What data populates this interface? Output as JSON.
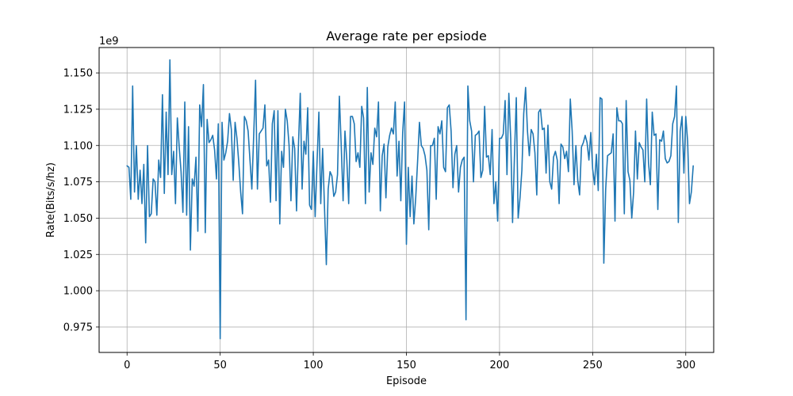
{
  "chart_data": {
    "type": "line",
    "title": "Average rate per epsiode",
    "xlabel": "Episode",
    "ylabel": "Rate(Bits/s/hz)",
    "y_offset_label": "1e9",
    "grid": true,
    "xlim": [
      -15,
      315
    ],
    "ylim": [
      0.9575,
      1.1675
    ],
    "x_ticks": [
      0,
      50,
      100,
      150,
      200,
      250,
      300
    ],
    "x_tick_labels": [
      "0",
      "50",
      "100",
      "150",
      "200",
      "250",
      "300"
    ],
    "y_ticks": [
      0.975,
      1.0,
      1.025,
      1.05,
      1.075,
      1.1,
      1.125,
      1.15
    ],
    "y_tick_labels": [
      "0.975",
      "1.000",
      "1.025",
      "1.050",
      "1.075",
      "1.100",
      "1.125",
      "1.150"
    ],
    "series_color": "#1f77b4",
    "series": [
      {
        "values": [
          1.086,
          1.085,
          1.063,
          1.141,
          1.068,
          1.1,
          1.063,
          1.083,
          1.06,
          1.087,
          1.033,
          1.1,
          1.051,
          1.053,
          1.077,
          1.075,
          1.052,
          1.09,
          1.078,
          1.135,
          1.067,
          1.123,
          1.08,
          1.159,
          1.08,
          1.096,
          1.06,
          1.119,
          1.099,
          1.082,
          1.054,
          1.13,
          1.052,
          1.113,
          1.028,
          1.077,
          1.072,
          1.092,
          1.041,
          1.128,
          1.113,
          1.142,
          1.04,
          1.118,
          1.102,
          1.104,
          1.107,
          1.097,
          1.077,
          1.115,
          0.967,
          1.116,
          1.09,
          1.095,
          1.103,
          1.122,
          1.111,
          1.076,
          1.116,
          1.105,
          1.088,
          1.068,
          1.053,
          1.12,
          1.117,
          1.11,
          1.09,
          1.07,
          1.107,
          1.145,
          1.07,
          1.108,
          1.11,
          1.112,
          1.128,
          1.086,
          1.09,
          1.061,
          1.115,
          1.124,
          1.062,
          1.124,
          1.046,
          1.096,
          1.085,
          1.125,
          1.117,
          1.1,
          1.062,
          1.106,
          1.098,
          1.055,
          1.099,
          1.136,
          1.07,
          1.103,
          1.094,
          1.126,
          1.059,
          1.056,
          1.096,
          1.051,
          1.088,
          1.123,
          1.06,
          1.098,
          1.058,
          1.018,
          1.07,
          1.082,
          1.079,
          1.065,
          1.068,
          1.08,
          1.134,
          1.1,
          1.062,
          1.11,
          1.09,
          1.06,
          1.12,
          1.12,
          1.115,
          1.089,
          1.095,
          1.085,
          1.127,
          1.119,
          1.06,
          1.14,
          1.068,
          1.095,
          1.087,
          1.112,
          1.106,
          1.13,
          1.055,
          1.093,
          1.101,
          1.064,
          1.099,
          1.107,
          1.112,
          1.108,
          1.13,
          1.079,
          1.103,
          1.062,
          1.109,
          1.13,
          1.032,
          1.085,
          1.051,
          1.079,
          1.046,
          1.064,
          1.089,
          1.116,
          1.1,
          1.098,
          1.093,
          1.083,
          1.042,
          1.1,
          1.1,
          1.105,
          1.063,
          1.113,
          1.108,
          1.117,
          1.085,
          1.082,
          1.126,
          1.128,
          1.11,
          1.071,
          1.094,
          1.1,
          1.068,
          1.085,
          1.09,
          1.092,
          0.98,
          1.141,
          1.117,
          1.11,
          1.075,
          1.107,
          1.108,
          1.11,
          1.078,
          1.083,
          1.127,
          1.092,
          1.093,
          1.08,
          1.111,
          1.06,
          1.075,
          1.048,
          1.105,
          1.105,
          1.108,
          1.131,
          1.08,
          1.136,
          1.105,
          1.047,
          1.092,
          1.133,
          1.05,
          1.064,
          1.083,
          1.122,
          1.14,
          1.11,
          1.093,
          1.111,
          1.108,
          1.095,
          1.066,
          1.123,
          1.125,
          1.111,
          1.112,
          1.081,
          1.114,
          1.075,
          1.07,
          1.092,
          1.096,
          1.09,
          1.06,
          1.101,
          1.099,
          1.091,
          1.096,
          1.082,
          1.132,
          1.11,
          1.073,
          1.1,
          1.076,
          1.066,
          1.099,
          1.102,
          1.107,
          1.102,
          1.09,
          1.109,
          1.084,
          1.073,
          1.094,
          1.069,
          1.133,
          1.132,
          1.019,
          1.07,
          1.093,
          1.094,
          1.095,
          1.108,
          1.048,
          1.126,
          1.117,
          1.117,
          1.115,
          1.053,
          1.131,
          1.082,
          1.076,
          1.05,
          1.068,
          1.11,
          1.077,
          1.102,
          1.099,
          1.097,
          1.075,
          1.132,
          1.088,
          1.073,
          1.123,
          1.107,
          1.108,
          1.056,
          1.104,
          1.103,
          1.11,
          1.091,
          1.088,
          1.089,
          1.093,
          1.115,
          1.12,
          1.141,
          1.047,
          1.11,
          1.12,
          1.081,
          1.12,
          1.103,
          1.06,
          1.068,
          1.086
        ]
      }
    ]
  }
}
